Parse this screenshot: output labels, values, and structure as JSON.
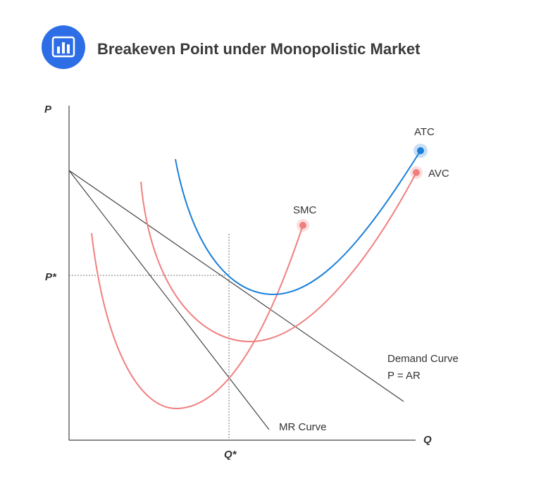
{
  "header": {
    "title": "Breakeven Point under Monopolistic Market"
  },
  "axes": {
    "y_label": "P",
    "x_label": "Q",
    "y_marker": "P*",
    "x_marker": "Q*"
  },
  "curves": {
    "atc": "ATC",
    "avc": "AVC",
    "smc": "SMC",
    "demand": "Demand Curve",
    "demand_eq": "P = AR",
    "mr": "MR Curve"
  }
}
